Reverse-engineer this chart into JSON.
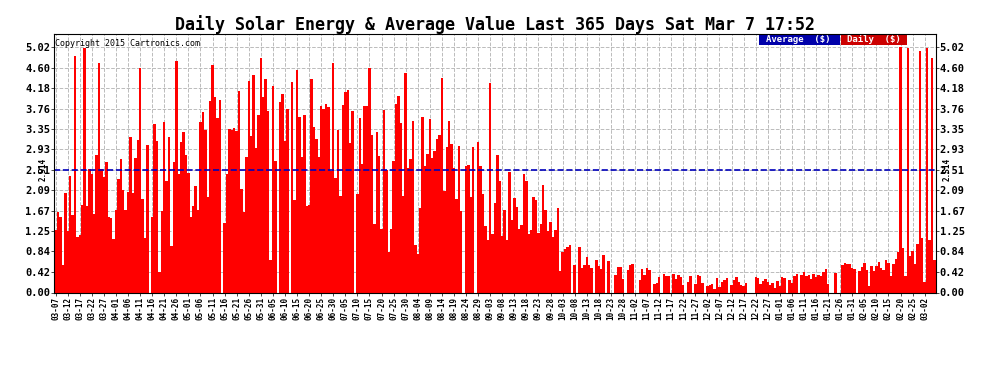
{
  "title": "Daily Solar Energy & Average Value Last 365 Days Sat Mar 7 17:52",
  "copyright": "Copyright 2015 Cartronics.com",
  "avg_label": "Average  ($)",
  "daily_label": "Daily  ($)",
  "avg_value": 2.514,
  "yticks": [
    0.0,
    0.42,
    0.84,
    1.25,
    1.67,
    2.09,
    2.51,
    2.93,
    3.35,
    3.76,
    4.18,
    4.6,
    5.02
  ],
  "bar_color": "#ff0000",
  "avg_line_color": "#0000bb",
  "background_color": "#ffffff",
  "grid_color": "#bbbbbb",
  "title_fontsize": 12,
  "legend_avg_bg": "#0000aa",
  "legend_daily_bg": "#cc0000",
  "legend_text_color": "#ffffff",
  "ylim": [
    0,
    5.3
  ],
  "tick_interval": 5
}
